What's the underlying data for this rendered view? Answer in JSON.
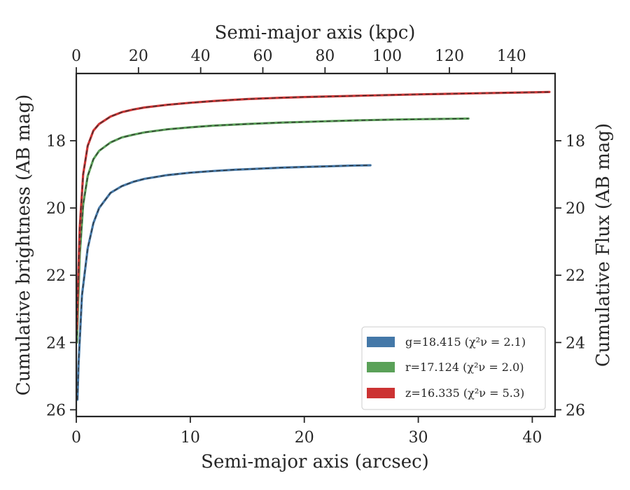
{
  "chart_data": {
    "type": "line",
    "xlabel": "Semi-major axis (arcsec)",
    "x2label": "Semi-major axis (kpc)",
    "ylabel": "Cumulative brightness (AB mag)",
    "y2label": "Cumulative Flux (AB mag)",
    "xlim": [
      0,
      42
    ],
    "ylim": [
      26.2,
      16.0
    ],
    "x2lim": [
      0,
      154
    ],
    "y_inverted": true,
    "grid": false,
    "legend_position": "lower-right",
    "xticks": [
      "0",
      "10",
      "20",
      "30",
      "40"
    ],
    "x2ticks": [
      "0",
      "20",
      "40",
      "60",
      "80",
      "100",
      "120",
      "140"
    ],
    "yticks": [
      "18",
      "20",
      "22",
      "24",
      "26"
    ],
    "series": [
      {
        "name": "g=18.415",
        "chi2": "χ²ν = 2.1",
        "color": "#4478a8",
        "x": [
          0.1,
          0.2,
          0.5,
          1,
          1.5,
          2,
          3,
          4,
          5,
          6,
          8,
          10,
          12,
          14,
          16,
          18,
          20,
          22,
          24,
          25.8
        ],
        "y": [
          25.7,
          24.6,
          22.6,
          21.2,
          20.45,
          20.0,
          19.55,
          19.35,
          19.22,
          19.13,
          19.02,
          18.95,
          18.9,
          18.86,
          18.83,
          18.8,
          18.78,
          18.76,
          18.74,
          18.73
        ]
      },
      {
        "name": "r=17.124",
        "chi2": "χ²ν = 2.0",
        "color": "#5aa158",
        "x": [
          0.05,
          0.1,
          0.3,
          0.6,
          1,
          1.5,
          2,
          3,
          4,
          5,
          6,
          8,
          10,
          12,
          15,
          18,
          20,
          22,
          25,
          28,
          30,
          32,
          34.4
        ],
        "y": [
          24.0,
          23.5,
          21.4,
          19.9,
          19.05,
          18.55,
          18.3,
          18.05,
          17.9,
          17.82,
          17.75,
          17.66,
          17.6,
          17.55,
          17.5,
          17.46,
          17.44,
          17.42,
          17.39,
          17.37,
          17.36,
          17.35,
          17.34
        ]
      },
      {
        "name": "z=16.335",
        "chi2": "χ²ν = 5.3",
        "color": "#cc3333",
        "x": [
          0.05,
          0.1,
          0.3,
          0.6,
          1,
          1.5,
          2,
          3,
          4,
          5,
          6,
          8,
          10,
          12,
          15,
          18,
          20,
          25,
          30,
          35,
          40,
          41.5
        ],
        "y": [
          23.6,
          22.9,
          20.6,
          19.0,
          18.15,
          17.7,
          17.5,
          17.28,
          17.15,
          17.07,
          17.01,
          16.93,
          16.87,
          16.82,
          16.76,
          16.72,
          16.7,
          16.66,
          16.62,
          16.59,
          16.56,
          16.55
        ]
      }
    ]
  }
}
